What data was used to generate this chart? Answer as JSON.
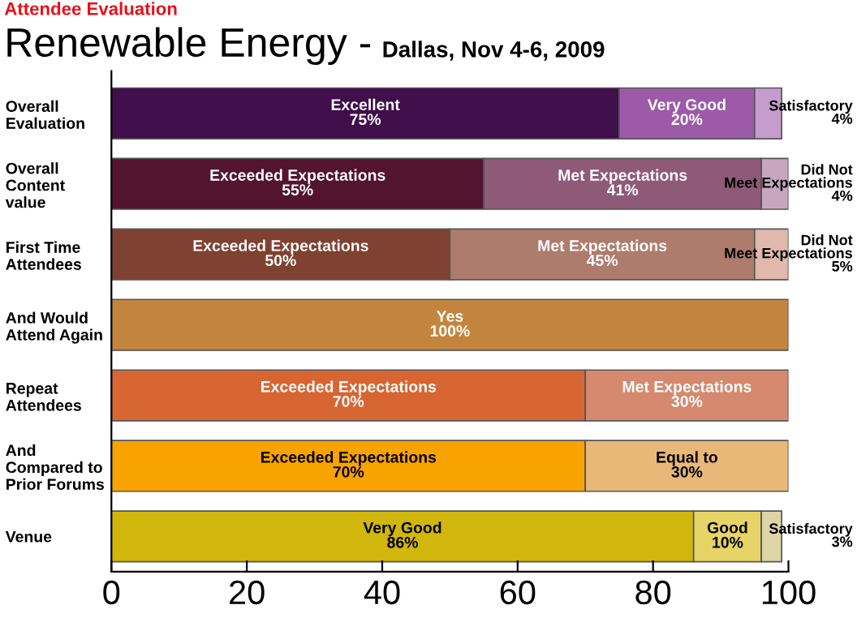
{
  "chart_data": {
    "type": "bar",
    "orientation": "horizontal",
    "stacked": true,
    "title": "Renewable Energy -",
    "subtitle": "Dallas, Nov 4-6, 2009",
    "annotations": [
      "Attendee Evaluation"
    ],
    "categories": [
      "Overall\nEvaluation",
      "Overall\nContent\nvalue",
      "First Time\nAttendees",
      "And Would\nAttend Again",
      "Repeat\nAttendees",
      "And\nCompared to\nPrior Forums",
      "Venue"
    ],
    "series": [
      {
        "colors": [
          "#400e4a",
          "#52142f",
          "#7f4232",
          "#c3853e",
          "#d86633",
          "#f9a300",
          "#d1b60c"
        ],
        "values": [
          75,
          55,
          50,
          100,
          70,
          70,
          86
        ],
        "value_labels": [
          "Excellent\n75%",
          "Exceeded Expectations\n55%",
          "Exceeded Expectations\n50%",
          "Yes\n100%",
          "Exceeded Expectations\n70%",
          "Exceeded Expectations\n70%",
          "Very Good\n86%"
        ]
      },
      {
        "colors": [
          "#9c5aa8",
          "#8e5a78",
          "#ae7c6c",
          null,
          "#d58a70",
          "#e8b878",
          "#e7d466"
        ],
        "values": [
          20,
          41,
          45,
          null,
          30,
          30,
          10
        ],
        "value_labels": [
          "Very Good\n20%",
          "Met Expectations\n41%",
          "Met Expectations\n45%",
          null,
          "Met Expectations\n30%",
          "Equal to\n30%",
          "Good\n10%"
        ]
      },
      {
        "colors": [
          "#c59dcc",
          "#c7a6c0",
          "#e0b8ad",
          null,
          null,
          null,
          "#ddd5a8"
        ],
        "values": [
          4,
          4,
          5,
          null,
          null,
          null,
          3
        ],
        "value_labels": [
          "Satisfactory\n4%",
          "Did Not\nMeet Expectations\n4%",
          "Did Not\nMeet Expectations\n5%",
          null,
          null,
          null,
          "Satisfactory\n3%"
        ]
      }
    ],
    "xlim": [
      0,
      100
    ],
    "xticks": [
      0,
      20,
      40,
      60,
      80,
      100
    ],
    "grid": false,
    "legend": false
  }
}
